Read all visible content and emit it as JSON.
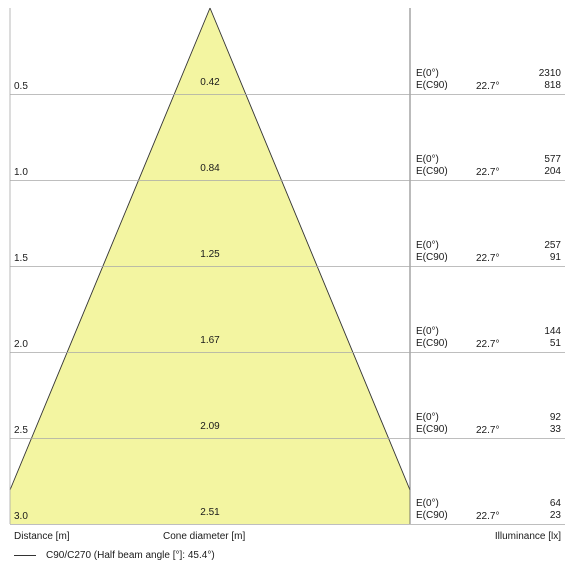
{
  "rows": [
    {
      "distance": "0.5",
      "cone": "0.42",
      "e0_label": "E(0°)",
      "ec90_label": "E(C90)",
      "angle": "22.7°",
      "e0": "2310",
      "ec90": "818"
    },
    {
      "distance": "1.0",
      "cone": "0.84",
      "e0_label": "E(0°)",
      "ec90_label": "E(C90)",
      "angle": "22.7°",
      "e0": "577",
      "ec90": "204"
    },
    {
      "distance": "1.5",
      "cone": "1.25",
      "e0_label": "E(0°)",
      "ec90_label": "E(C90)",
      "angle": "22.7°",
      "e0": "257",
      "ec90": "91"
    },
    {
      "distance": "2.0",
      "cone": "1.67",
      "e0_label": "E(0°)",
      "ec90_label": "E(C90)",
      "angle": "22.7°",
      "e0": "144",
      "ec90": "51"
    },
    {
      "distance": "2.5",
      "cone": "2.09",
      "e0_label": "E(0°)",
      "ec90_label": "E(C90)",
      "angle": "22.7°",
      "e0": "92",
      "ec90": "33"
    },
    {
      "distance": "3.0",
      "cone": "2.51",
      "e0_label": "E(0°)",
      "ec90_label": "E(C90)",
      "angle": "22.7°",
      "e0": "64",
      "ec90": "23"
    }
  ],
  "axis": {
    "distance": "Distance [m]",
    "cone": "Cone diameter [m]",
    "illuminance": "Illuminance [lx]"
  },
  "legend": "C90/C270 (Half beam angle [°]: 45.4°)",
  "colors": {
    "cone_fill": "#f3f5a1",
    "line": "#333333",
    "grid": "#a8a8a8"
  }
}
